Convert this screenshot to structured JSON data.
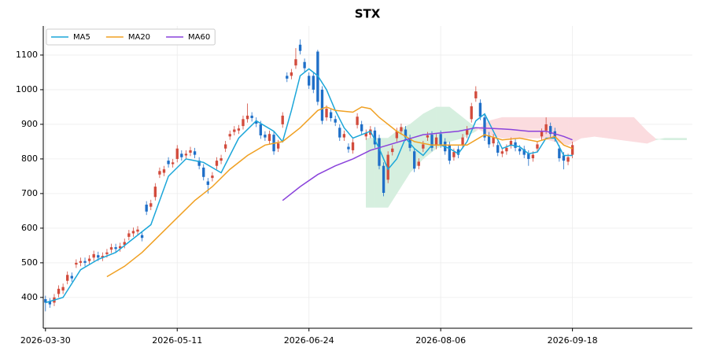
{
  "chart_data": {
    "type": "candlestick",
    "title": "STX",
    "xlim": [
      -0.5,
      147.3
    ],
    "ylim": [
      311,
      1184
    ],
    "xticks": [
      {
        "value": 0,
        "label": "2026-03-30"
      },
      {
        "value": 30,
        "label": "2026-05-11"
      },
      {
        "value": 60,
        "label": "2026-06-24"
      },
      {
        "value": 90,
        "label": "2026-08-06"
      },
      {
        "value": 120,
        "label": "2026-09-18"
      }
    ],
    "yticks": [
      400,
      500,
      600,
      700,
      800,
      900,
      1000,
      1100
    ],
    "grid": true,
    "legend": "upper left",
    "up_color": "#d24b3c",
    "down_color": "#1f6fc8",
    "candles": {
      "x": [
        0,
        1,
        2,
        3,
        4,
        5,
        6,
        7,
        8,
        9,
        10,
        11,
        12,
        13,
        14,
        15,
        16,
        17,
        18,
        19,
        20,
        21,
        22,
        23,
        24,
        25,
        26,
        27,
        28,
        29,
        30,
        31,
        32,
        33,
        34,
        35,
        36,
        37,
        38,
        39,
        40,
        41,
        42,
        43,
        44,
        45,
        46,
        47,
        48,
        49,
        50,
        51,
        52,
        53,
        54,
        55,
        56,
        57,
        58,
        59,
        60,
        61,
        62,
        63,
        64,
        65,
        66,
        67,
        68,
        69,
        70,
        71,
        72,
        73,
        74,
        75,
        76,
        77,
        78,
        79,
        80,
        81,
        82,
        83,
        84,
        85,
        86,
        87,
        88,
        89,
        90,
        91,
        92,
        93,
        94,
        95,
        96,
        97,
        98,
        99,
        100,
        101,
        102,
        103,
        104,
        105,
        106,
        107,
        108,
        109,
        110,
        111,
        112,
        113,
        114,
        115,
        116,
        117,
        118,
        119,
        120
      ],
      "open": [
        395,
        388,
        385,
        410,
        420,
        448,
        462,
        495,
        500,
        505,
        505,
        515,
        522,
        515,
        525,
        538,
        545,
        542,
        552,
        575,
        585,
        590,
        580,
        668,
        662,
        690,
        755,
        760,
        795,
        785,
        800,
        815,
        810,
        818,
        822,
        795,
        775,
        735,
        745,
        780,
        795,
        830,
        865,
        878,
        882,
        895,
        915,
        925,
        910,
        900,
        870,
        852,
        870,
        830,
        900,
        1040,
        1040,
        1070,
        1130,
        1080,
        1040,
        1040,
        1110,
        1000,
        920,
        935,
        915,
        890,
        862,
        835,
        825,
        898,
        900,
        865,
        870,
        882,
        860,
        780,
        740,
        820,
        860,
        880,
        885,
        860,
        822,
        780,
        830,
        862,
        870,
        838,
        872,
        850,
        840,
        805,
        828,
        840,
        870,
        915,
        975,
        962,
        920,
        868,
        845,
        840,
        815,
        822,
        840,
        848,
        830,
        828,
        815,
        802,
        830,
        865,
        882,
        895,
        880,
        830,
        810,
        792,
        812
      ],
      "high": [
        405,
        398,
        410,
        435,
        440,
        475,
        472,
        510,
        515,
        515,
        522,
        535,
        532,
        530,
        540,
        555,
        555,
        558,
        570,
        595,
        602,
        606,
        590,
        678,
        682,
        730,
        775,
        780,
        805,
        800,
        840,
        825,
        825,
        835,
        832,
        805,
        785,
        745,
        762,
        805,
        812,
        852,
        882,
        895,
        898,
        925,
        960,
        935,
        920,
        910,
        880,
        882,
        880,
        855,
        935,
        1050,
        1060,
        1120,
        1145,
        1090,
        1050,
        1050,
        1115,
        1010,
        955,
        945,
        925,
        900,
        882,
        845,
        858,
        932,
        910,
        885,
        895,
        892,
        870,
        790,
        822,
        840,
        890,
        902,
        895,
        870,
        832,
        802,
        852,
        878,
        880,
        872,
        882,
        860,
        850,
        830,
        838,
        872,
        895,
        962,
        1010,
        972,
        930,
        878,
        872,
        850,
        832,
        842,
        862,
        858,
        840,
        838,
        825,
        822,
        852,
        888,
        920,
        905,
        890,
        840,
        820,
        815,
        850
      ],
      "low": [
        360,
        370,
        375,
        400,
        410,
        438,
        445,
        485,
        490,
        490,
        495,
        505,
        505,
        505,
        515,
        528,
        530,
        532,
        542,
        565,
        575,
        580,
        562,
        638,
        652,
        680,
        745,
        750,
        775,
        775,
        790,
        795,
        800,
        808,
        802,
        770,
        738,
        700,
        735,
        770,
        785,
        820,
        855,
        868,
        872,
        885,
        905,
        908,
        892,
        858,
        852,
        842,
        812,
        820,
        890,
        1022,
        1030,
        1060,
        1102,
        1052,
        1002,
        990,
        955,
        900,
        910,
        908,
        895,
        852,
        852,
        818,
        815,
        888,
        870,
        855,
        860,
        832,
        770,
        692,
        730,
        810,
        850,
        870,
        852,
        822,
        762,
        770,
        820,
        852,
        822,
        828,
        832,
        812,
        785,
        795,
        802,
        830,
        860,
        905,
        965,
        912,
        852,
        832,
        835,
        808,
        805,
        812,
        830,
        822,
        812,
        802,
        780,
        792,
        820,
        855,
        872,
        862,
        850,
        792,
        770,
        782,
        802
      ],
      "close": [
        385,
        380,
        400,
        425,
        430,
        465,
        455,
        500,
        505,
        500,
        512,
        525,
        515,
        520,
        530,
        545,
        540,
        548,
        560,
        585,
        592,
        596,
        572,
        648,
        672,
        720,
        765,
        770,
        785,
        790,
        830,
        805,
        815,
        825,
        812,
        780,
        748,
        725,
        752,
        795,
        802,
        842,
        872,
        885,
        888,
        915,
        925,
        918,
        902,
        868,
        862,
        872,
        822,
        845,
        925,
        1032,
        1050,
        1088,
        1112,
        1062,
        1012,
        1000,
        965,
        910,
        945,
        918,
        905,
        862,
        872,
        828,
        848,
        922,
        880,
        875,
        885,
        842,
        780,
        702,
        812,
        830,
        880,
        892,
        862,
        832,
        772,
        792,
        842,
        868,
        832,
        862,
        842,
        822,
        795,
        820,
        812,
        862,
        885,
        952,
        995,
        922,
        862,
        842,
        862,
        818,
        822,
        832,
        852,
        832,
        822,
        812,
        800,
        812,
        842,
        878,
        900,
        872,
        860,
        802,
        795,
        805,
        840
      ]
    },
    "series": [
      {
        "name": "MA5",
        "color": "#1ba6d9",
        "x": [
          0,
          4,
          8,
          12,
          16,
          20,
          24,
          28,
          32,
          36,
          40,
          44,
          48,
          52,
          54,
          56,
          58,
          60,
          62,
          64,
          66,
          68,
          70,
          72,
          74,
          76,
          78,
          80,
          82,
          84,
          86,
          88,
          90,
          92,
          94,
          96,
          98,
          100,
          102,
          104,
          106,
          108,
          110,
          112,
          114,
          116,
          118,
          120
        ],
        "values": [
          385,
          400,
          480,
          510,
          530,
          570,
          610,
          750,
          800,
          790,
          760,
          860,
          910,
          880,
          850,
          940,
          1040,
          1060,
          1040,
          1000,
          940,
          890,
          860,
          870,
          880,
          830,
          770,
          800,
          860,
          830,
          810,
          840,
          840,
          830,
          815,
          850,
          910,
          930,
          880,
          830,
          840,
          835,
          815,
          820,
          860,
          860,
          810,
          810
        ]
      },
      {
        "name": "MA20",
        "color": "#f0a022",
        "x": [
          14,
          18,
          22,
          26,
          30,
          34,
          38,
          42,
          46,
          50,
          54,
          58,
          62,
          64,
          66,
          70,
          72,
          74,
          76,
          80,
          84,
          88,
          92,
          96,
          100,
          104,
          108,
          112,
          116,
          118,
          120
        ],
        "values": [
          460,
          490,
          530,
          580,
          630,
          680,
          720,
          770,
          810,
          840,
          850,
          890,
          940,
          950,
          940,
          935,
          950,
          945,
          920,
          880,
          850,
          840,
          840,
          840,
          870,
          855,
          860,
          850,
          865,
          840,
          830
        ]
      },
      {
        "name": "MA60",
        "color": "#8a42db",
        "x": [
          54,
          58,
          62,
          66,
          70,
          74,
          78,
          82,
          86,
          90,
          94,
          98,
          102,
          106,
          110,
          114,
          118,
          120
        ],
        "values": [
          680,
          720,
          755,
          780,
          800,
          825,
          840,
          855,
          870,
          875,
          880,
          890,
          888,
          885,
          880,
          880,
          865,
          855
        ]
      }
    ],
    "cloud": {
      "up_color": "#d6efdf",
      "down_color": "#fbdcdf",
      "x": [
        73,
        75,
        78,
        80,
        83,
        86,
        89,
        92,
        95,
        98,
        101,
        104,
        107,
        110,
        113,
        116,
        119,
        122,
        125,
        128,
        131,
        134,
        137,
        139,
        141,
        144,
        146
      ],
      "span_a": [
        860,
        860,
        860,
        880,
        900,
        930,
        950,
        950,
        920,
        890,
        870,
        860,
        860,
        860,
        860,
        850,
        840,
        860,
        865,
        860,
        855,
        850,
        845,
        855,
        860,
        860,
        860
      ],
      "span_b": [
        660,
        660,
        660,
        700,
        760,
        800,
        830,
        850,
        860,
        880,
        910,
        920,
        920,
        920,
        920,
        920,
        920,
        920,
        920,
        920,
        920,
        920,
        880,
        858,
        855,
        855,
        855
      ]
    }
  }
}
